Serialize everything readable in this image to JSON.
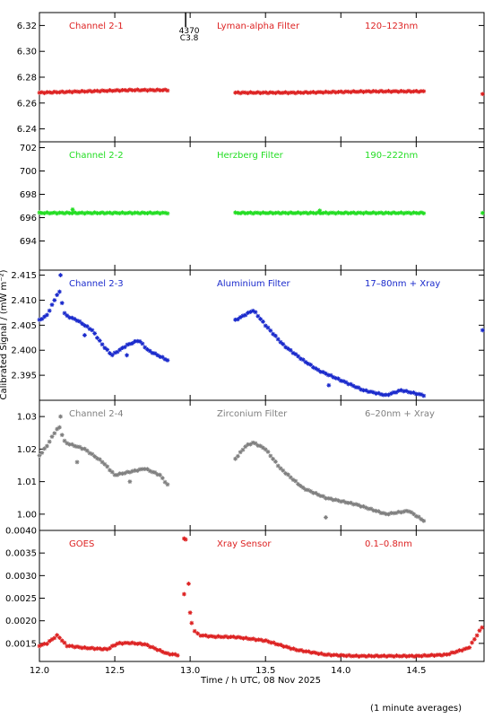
{
  "chart_data": {
    "type": "scatter",
    "ylabel": "Calibrated Signal / (mW m⁻²)",
    "xlabel": "Time / h UTC, 08 Nov 2025",
    "footnote": "(1 minute averages)",
    "xlim": [
      12.0,
      14.95
    ],
    "xticks": [
      "12.0",
      "12.5",
      "13.0",
      "13.5",
      "14.0",
      "14.5"
    ],
    "xtick_values": [
      12.0,
      12.5,
      13.0,
      13.5,
      14.0,
      14.5
    ],
    "marker_annotation": {
      "x": 12.97,
      "lines": [
        "4370",
        "C3.8"
      ]
    },
    "panels": [
      {
        "channel": "Channel 2-1",
        "filter": "Lyman-alpha Filter",
        "band": "120–123nm",
        "color": "#dd2222",
        "ylim": [
          6.23,
          6.33
        ],
        "yticks": [
          "6.24",
          "6.26",
          "6.28",
          "6.30",
          "6.32"
        ],
        "ytick_values": [
          6.24,
          6.26,
          6.28,
          6.3,
          6.32
        ],
        "series": [
          {
            "anchors": [
              [
                12.0,
                6.268
              ],
              [
                12.3,
                6.269
              ],
              [
                12.6,
                6.27
              ],
              [
                12.85,
                6.27
              ]
            ]
          },
          {
            "anchors": [
              [
                13.3,
                6.268
              ],
              [
                13.7,
                6.268
              ],
              [
                14.2,
                6.269
              ],
              [
                14.55,
                6.269
              ]
            ]
          }
        ],
        "extra_points": [
          [
            14.94,
            6.267
          ]
        ]
      },
      {
        "channel": "Channel 2-2",
        "filter": "Herzberg Filter",
        "band": "190–222nm",
        "color": "#22dd22",
        "ylim": [
          691.5,
          702.5
        ],
        "yticks": [
          "694",
          "696",
          "698",
          "700",
          "702"
        ],
        "ytick_values": [
          694,
          696,
          698,
          700,
          702
        ],
        "series": [
          {
            "anchors": [
              [
                12.0,
                696.4
              ],
              [
                12.85,
                696.4
              ]
            ]
          },
          {
            "anchors": [
              [
                13.3,
                696.4
              ],
              [
                14.55,
                696.4
              ]
            ]
          }
        ],
        "extra_points": [
          [
            12.22,
            696.7
          ],
          [
            13.86,
            696.6
          ],
          [
            14.94,
            696.4
          ]
        ]
      },
      {
        "channel": "Channel 2-3",
        "filter": "Aluminium Filter",
        "band": "17–80nm + Xray",
        "color": "#1a2acc",
        "ylim": [
          2.39,
          2.416
        ],
        "yticks": [
          "2.395",
          "2.400",
          "2.405",
          "2.410",
          "2.415"
        ],
        "ytick_values": [
          2.395,
          2.4,
          2.405,
          2.41,
          2.415
        ],
        "series": [
          {
            "anchors": [
              [
                12.0,
                2.406
              ],
              [
                12.05,
                2.407
              ],
              [
                12.1,
                2.41
              ],
              [
                12.13,
                2.412
              ],
              [
                12.17,
                2.407
              ],
              [
                12.25,
                2.406
              ],
              [
                12.35,
                2.404
              ],
              [
                12.42,
                2.401
              ],
              [
                12.48,
                2.399
              ],
              [
                12.58,
                2.401
              ],
              [
                12.66,
                2.402
              ],
              [
                12.72,
                2.4
              ],
              [
                12.85,
                2.398
              ]
            ]
          },
          {
            "anchors": [
              [
                13.3,
                2.406
              ],
              [
                13.42,
                2.408
              ],
              [
                13.5,
                2.405
              ],
              [
                13.62,
                2.401
              ],
              [
                13.75,
                2.398
              ],
              [
                13.85,
                2.396
              ],
              [
                14.0,
                2.394
              ],
              [
                14.15,
                2.392
              ],
              [
                14.3,
                2.391
              ],
              [
                14.4,
                2.392
              ],
              [
                14.55,
                2.391
              ]
            ]
          }
        ],
        "extra_points": [
          [
            12.14,
            2.415
          ],
          [
            12.3,
            2.403
          ],
          [
            12.58,
            2.399
          ],
          [
            13.92,
            2.393
          ],
          [
            14.94,
            2.404
          ]
        ]
      },
      {
        "channel": "Channel 2-4",
        "filter": "Zirconium Filter",
        "band": "6–20nm + Xray",
        "color": "#808080",
        "ylim": [
          0.995,
          1.035
        ],
        "yticks": [
          "1.00",
          "1.01",
          "1.02",
          "1.03"
        ],
        "ytick_values": [
          1.0,
          1.01,
          1.02,
          1.03
        ],
        "series": [
          {
            "anchors": [
              [
                12.0,
                1.018
              ],
              [
                12.05,
                1.021
              ],
              [
                12.1,
                1.025
              ],
              [
                12.13,
                1.027
              ],
              [
                12.17,
                1.022
              ],
              [
                12.3,
                1.02
              ],
              [
                12.42,
                1.016
              ],
              [
                12.5,
                1.012
              ],
              [
                12.6,
                1.013
              ],
              [
                12.7,
                1.014
              ],
              [
                12.8,
                1.012
              ],
              [
                12.85,
                1.009
              ]
            ]
          },
          {
            "anchors": [
              [
                13.3,
                1.017
              ],
              [
                13.37,
                1.021
              ],
              [
                13.42,
                1.022
              ],
              [
                13.5,
                1.02
              ],
              [
                13.6,
                1.014
              ],
              [
                13.75,
                1.008
              ],
              [
                13.9,
                1.005
              ],
              [
                14.1,
                1.003
              ],
              [
                14.3,
                1.0
              ],
              [
                14.45,
                1.001
              ],
              [
                14.55,
                0.998
              ]
            ]
          }
        ],
        "extra_points": [
          [
            12.14,
            1.03
          ],
          [
            12.25,
            1.016
          ],
          [
            12.6,
            1.01
          ],
          [
            13.9,
            0.999
          ]
        ]
      },
      {
        "channel": "GOES",
        "filter": "Xray Sensor",
        "band": "0.1–0.8nm",
        "color": "#dd2222",
        "ylim": [
          0.0011,
          0.004
        ],
        "yticks": [
          "0.0015",
          "0.0020",
          "0.0025",
          "0.0030",
          "0.0035",
          "0.0040"
        ],
        "ytick_values": [
          0.0015,
          0.002,
          0.0025,
          0.003,
          0.0035,
          0.004
        ],
        "series": [
          {
            "anchors": [
              [
                12.0,
                0.00145
              ],
              [
                12.05,
                0.0015
              ],
              [
                12.12,
                0.00168
              ],
              [
                12.18,
                0.00145
              ],
              [
                12.3,
                0.0014
              ],
              [
                12.45,
                0.00137
              ],
              [
                12.52,
                0.0015
              ],
              [
                12.6,
                0.00151
              ],
              [
                12.7,
                0.00148
              ],
              [
                12.85,
                0.00127
              ],
              [
                12.93,
                0.00124
              ]
            ]
          },
          {
            "anchors": [
              [
                13.07,
                0.00168
              ],
              [
                13.15,
                0.00165
              ],
              [
                13.3,
                0.00164
              ],
              [
                13.5,
                0.00156
              ],
              [
                13.7,
                0.00136
              ],
              [
                13.9,
                0.00125
              ],
              [
                14.1,
                0.00122
              ],
              [
                14.3,
                0.00122
              ],
              [
                14.5,
                0.00122
              ],
              [
                14.7,
                0.00125
              ],
              [
                14.85,
                0.0014
              ],
              [
                14.95,
                0.00193
              ]
            ]
          }
        ],
        "extra_points": [
          [
            12.96,
            0.00382
          ],
          [
            12.97,
            0.0038
          ],
          [
            12.96,
            0.00259
          ],
          [
            12.99,
            0.00282
          ],
          [
            13.0,
            0.00218
          ],
          [
            13.01,
            0.00195
          ],
          [
            13.03,
            0.00177
          ],
          [
            13.05,
            0.00172
          ]
        ]
      }
    ]
  }
}
